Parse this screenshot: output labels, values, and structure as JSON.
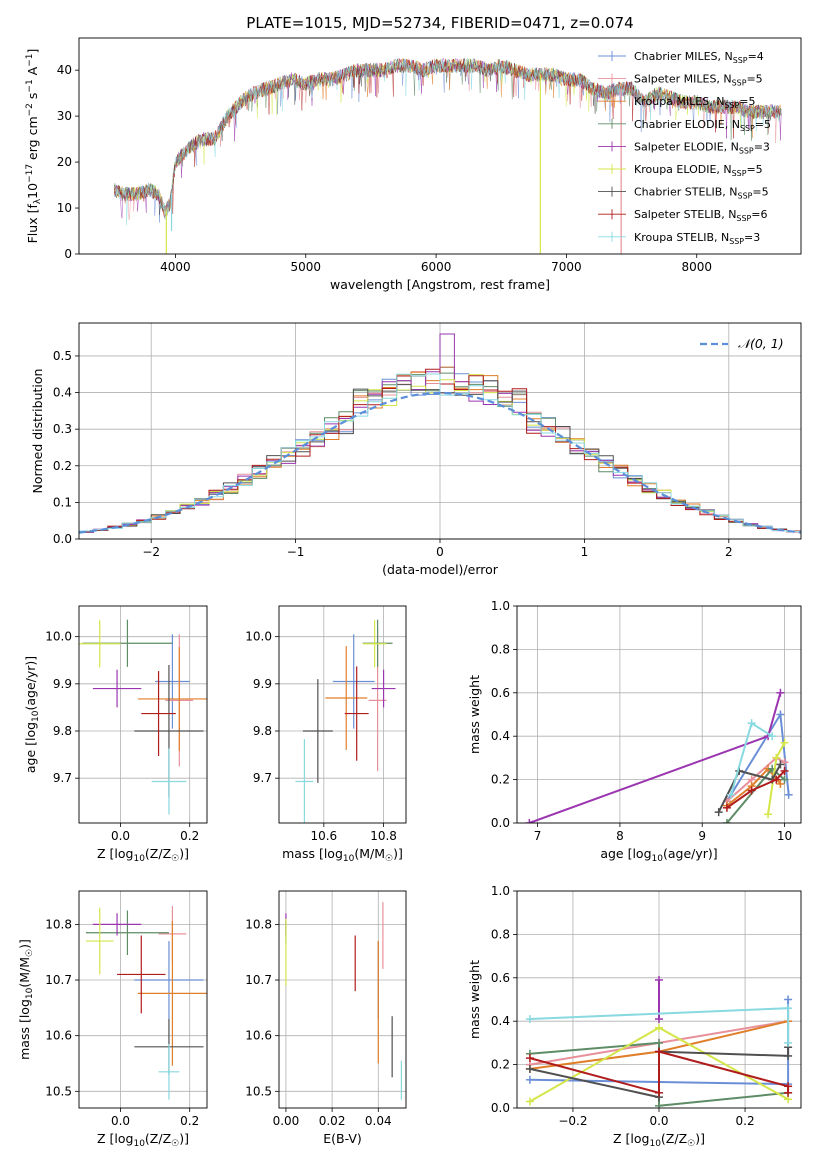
{
  "figure": {
    "title": "PLATE=1015, MJD=52734, FIBERID=0471, z=0.074"
  },
  "colors": {
    "Chabrier MILES": "#6b8fd6",
    "Salpeter MILES": "#e8909a",
    "Kroupa MILES": "#e07f2a",
    "Chabrier ELODIE": "#5e8c66",
    "Salpeter ELODIE": "#9b36b0",
    "Kroupa ELODIE": "#d4e64a",
    "Chabrier STELIB": "#505050",
    "Salpeter STELIB": "#b01c1c",
    "Kroupa STELIB": "#88d9e0"
  },
  "chart_data": [
    {
      "id": "spectrum",
      "type": "line",
      "title": "PLATE=1015, MJD=52734, FIBERID=0471, z=0.074",
      "xlabel": "wavelength [Angstrom, rest frame]",
      "ylabel": "Flux [f_λ10^-17 erg cm^-2 s^-1 A^-1]",
      "xlim": [
        3260,
        8800
      ],
      "ylim": [
        0,
        47
      ],
      "xticks": [
        4000,
        5000,
        6000,
        7000,
        8000
      ],
      "yticks": [
        0,
        10,
        20,
        30,
        40
      ],
      "grid": false,
      "legend_position": "top-right",
      "legend": [
        "Chabrier MILES, N_SSP=4",
        "Salpeter MILES, N_SSP=5",
        "Kroupa MILES, N_SSP=5",
        "Chabrier ELODIE, N_SSP=5",
        "Salpeter ELODIE, N_SSP=3",
        "Kroupa ELODIE, N_SSP=5",
        "Chabrier STELIB, N_SSP=5",
        "Salpeter STELIB, N_SSP=6",
        "Kroupa STELIB, N_SSP=3"
      ],
      "continuum": [
        [
          3530,
          14
        ],
        [
          3600,
          13
        ],
        [
          3700,
          13
        ],
        [
          3800,
          14
        ],
        [
          3870,
          13
        ],
        [
          3920,
          9
        ],
        [
          3960,
          11
        ],
        [
          4000,
          20
        ],
        [
          4100,
          23
        ],
        [
          4200,
          25
        ],
        [
          4300,
          25
        ],
        [
          4400,
          30
        ],
        [
          4500,
          33
        ],
        [
          4600,
          35
        ],
        [
          4700,
          36
        ],
        [
          4800,
          37
        ],
        [
          4900,
          38
        ],
        [
          5000,
          37
        ],
        [
          5100,
          38
        ],
        [
          5200,
          38
        ],
        [
          5300,
          39
        ],
        [
          5400,
          40
        ],
        [
          5500,
          40
        ],
        [
          5600,
          40
        ],
        [
          5700,
          41
        ],
        [
          5800,
          41
        ],
        [
          5900,
          40
        ],
        [
          6000,
          41
        ],
        [
          6100,
          41
        ],
        [
          6200,
          41
        ],
        [
          6300,
          41
        ],
        [
          6400,
          40
        ],
        [
          6500,
          41
        ],
        [
          6600,
          40
        ],
        [
          6700,
          39
        ],
        [
          6800,
          39
        ],
        [
          6900,
          39
        ],
        [
          7000,
          38
        ],
        [
          7100,
          38
        ],
        [
          7200,
          36
        ],
        [
          7300,
          35
        ],
        [
          7400,
          36
        ],
        [
          7500,
          36
        ],
        [
          7600,
          33
        ],
        [
          7700,
          35
        ],
        [
          7800,
          34
        ],
        [
          7900,
          33
        ],
        [
          8000,
          33
        ],
        [
          8100,
          32
        ],
        [
          8200,
          32
        ],
        [
          8300,
          32
        ],
        [
          8400,
          31
        ],
        [
          8500,
          31
        ],
        [
          8600,
          31
        ],
        [
          8650,
          31
        ]
      ],
      "spikes": [
        [
          3930,
          0,
          "Kroupa ELODIE"
        ],
        [
          3970,
          5,
          "Kroupa STELIB"
        ],
        [
          6800,
          0,
          "Kroupa ELODIE"
        ],
        [
          7420,
          0,
          "Salpeter MILES"
        ]
      ]
    },
    {
      "id": "residuals",
      "type": "histogram",
      "xlabel": "(data-model)/error",
      "ylabel": "Normed distribution",
      "xlim": [
        -2.5,
        2.5
      ],
      "ylim": [
        0,
        0.59
      ],
      "xticks": [
        -2,
        -1,
        0,
        1,
        2
      ],
      "yticks": [
        0.0,
        0.1,
        0.2,
        0.3,
        0.4,
        0.5
      ],
      "grid": true,
      "legend": [
        "𝒩(0, 1)"
      ],
      "legend_position": "top-right",
      "bin_width": 0.1,
      "reference": "normal(0,1)"
    },
    {
      "id": "age-vs-Z",
      "type": "errorbar",
      "xlabel": "Z [log10(Z/Z☉)]",
      "ylabel": "age [log10(age/yr)]",
      "xlim": [
        -0.12,
        0.25
      ],
      "ylim": [
        9.605,
        10.065
      ],
      "xticks": [
        0.0,
        0.2
      ],
      "yticks": [
        9.7,
        9.8,
        9.9,
        10.0
      ],
      "grid": true,
      "points": [
        {
          "series": "Chabrier MILES",
          "x": 0.15,
          "y": 9.905,
          "xerr": 0.05,
          "yerr": 0.1
        },
        {
          "series": "Salpeter MILES",
          "x": 0.17,
          "y": 9.865,
          "xerr": 0.04,
          "yerr": 0.14
        },
        {
          "series": "Kroupa MILES",
          "x": 0.17,
          "y": 9.868,
          "xerr": 0.12,
          "yerr": 0.11
        },
        {
          "series": "Chabrier ELODIE",
          "x": 0.02,
          "y": 9.986,
          "xerr": 0.13,
          "yerr": 0.05
        },
        {
          "series": "Salpeter ELODIE",
          "x": -0.01,
          "y": 9.89,
          "xerr": 0.07,
          "yerr": 0.04
        },
        {
          "series": "Kroupa ELODIE",
          "x": -0.06,
          "y": 9.985,
          "xerr": 0.06,
          "yerr": 0.05
        },
        {
          "series": "Chabrier STELIB",
          "x": 0.14,
          "y": 9.8,
          "xerr": 0.1,
          "yerr": 0.14
        },
        {
          "series": "Salpeter STELIB",
          "x": 0.11,
          "y": 9.837,
          "xerr": 0.05,
          "yerr": 0.09
        },
        {
          "series": "Kroupa STELIB",
          "x": 0.14,
          "y": 9.693,
          "xerr": 0.05,
          "yerr": 0.07
        }
      ]
    },
    {
      "id": "age-vs-mass",
      "type": "errorbar",
      "xlabel": "mass [log10(M/M☉)]",
      "ylabel": "",
      "xlim": [
        10.45,
        10.875
      ],
      "ylim": [
        9.605,
        10.065
      ],
      "xticks": [
        10.6,
        10.8
      ],
      "yticks": [
        9.7,
        9.8,
        9.9,
        10.0
      ],
      "grid": true,
      "points": [
        {
          "series": "Chabrier MILES",
          "x": 10.7,
          "y": 9.905,
          "xerr": 0.07,
          "yerr": 0.1
        },
        {
          "series": "Salpeter MILES",
          "x": 10.78,
          "y": 9.865,
          "xerr": 0.03,
          "yerr": 0.15
        },
        {
          "series": "Kroupa MILES",
          "x": 10.675,
          "y": 9.87,
          "xerr": 0.07,
          "yerr": 0.11
        },
        {
          "series": "Chabrier ELODIE",
          "x": 10.78,
          "y": 9.986,
          "xerr": 0.05,
          "yerr": 0.05
        },
        {
          "series": "Salpeter ELODIE",
          "x": 10.8,
          "y": 9.89,
          "xerr": 0.04,
          "yerr": 0.04
        },
        {
          "series": "Kroupa ELODIE",
          "x": 10.77,
          "y": 9.985,
          "xerr": 0.04,
          "yerr": 0.05
        },
        {
          "series": "Chabrier STELIB",
          "x": 10.58,
          "y": 9.8,
          "xerr": 0.05,
          "yerr": 0.11
        },
        {
          "series": "Salpeter STELIB",
          "x": 10.71,
          "y": 9.837,
          "xerr": 0.04,
          "yerr": 0.1
        },
        {
          "series": "Kroupa STELIB",
          "x": 10.535,
          "y": 9.693,
          "xerr": 0.03,
          "yerr": 0.09
        }
      ]
    },
    {
      "id": "weight-vs-age",
      "type": "line",
      "xlabel": "age [log10(age/yr)]",
      "ylabel": "mass weight",
      "xlim": [
        6.75,
        10.2
      ],
      "ylim": [
        0,
        1
      ],
      "xticks": [
        7,
        8,
        9,
        10
      ],
      "yticks": [
        0.0,
        0.2,
        0.4,
        0.6,
        0.8,
        1.0
      ],
      "grid": true,
      "series": [
        {
          "name": "Chabrier MILES",
          "x": [
            9.3,
            9.95,
            10.05
          ],
          "y": [
            0.1,
            0.5,
            0.13
          ]
        },
        {
          "name": "Salpeter MILES",
          "x": [
            9.3,
            9.6,
            9.9,
            10.0
          ],
          "y": [
            0.1,
            0.2,
            0.3,
            0.28
          ]
        },
        {
          "name": "Kroupa MILES",
          "x": [
            9.3,
            9.6,
            9.8,
            9.95
          ],
          "y": [
            0.08,
            0.17,
            0.25,
            0.18
          ]
        },
        {
          "name": "Chabrier ELODIE",
          "x": [
            9.3,
            9.85,
            10.0
          ],
          "y": [
            0.0,
            0.25,
            0.2
          ]
        },
        {
          "name": "Salpeter ELODIE",
          "x": [
            6.9,
            9.8,
            9.95
          ],
          "y": [
            0.0,
            0.4,
            0.6
          ]
        },
        {
          "name": "Kroupa ELODIE",
          "x": [
            9.8,
            9.9,
            10.0
          ],
          "y": [
            0.04,
            0.3,
            0.37
          ]
        },
        {
          "name": "Chabrier STELIB",
          "x": [
            9.2,
            9.45,
            9.85,
            9.95
          ],
          "y": [
            0.05,
            0.24,
            0.2,
            0.27
          ]
        },
        {
          "name": "Salpeter STELIB",
          "x": [
            9.3,
            9.6,
            9.9,
            10.0
          ],
          "y": [
            0.07,
            0.15,
            0.2,
            0.24
          ]
        },
        {
          "name": "Kroupa STELIB",
          "x": [
            9.35,
            9.6,
            9.85
          ],
          "y": [
            0.13,
            0.46,
            0.4
          ]
        }
      ]
    },
    {
      "id": "mass-vs-Z",
      "type": "errorbar",
      "xlabel": "Z [log10(Z/Z☉)]",
      "ylabel": "mass [log10(M/M☉)]",
      "xlim": [
        -0.12,
        0.25
      ],
      "ylim": [
        10.47,
        10.86
      ],
      "xticks": [
        0.0,
        0.2
      ],
      "yticks": [
        10.5,
        10.6,
        10.7,
        10.8
      ],
      "grid": true,
      "points": [
        {
          "series": "Chabrier MILES",
          "x": 0.14,
          "y": 10.7,
          "xerr": 0.1,
          "yerr": 0.07
        },
        {
          "series": "Salpeter MILES",
          "x": 0.15,
          "y": 10.783,
          "xerr": 0.04,
          "yerr": 0.05
        },
        {
          "series": "Kroupa MILES",
          "x": 0.15,
          "y": 10.676,
          "xerr": 0.1,
          "yerr": 0.13
        },
        {
          "series": "Chabrier ELODIE",
          "x": 0.02,
          "y": 10.785,
          "xerr": 0.12,
          "yerr": 0.04
        },
        {
          "series": "Salpeter ELODIE",
          "x": -0.01,
          "y": 10.8,
          "xerr": 0.07,
          "yerr": 0.02
        },
        {
          "series": "Kroupa ELODIE",
          "x": -0.06,
          "y": 10.77,
          "xerr": 0.04,
          "yerr": 0.06
        },
        {
          "series": "Chabrier STELIB",
          "x": 0.14,
          "y": 10.58,
          "xerr": 0.1,
          "yerr": 0.05
        },
        {
          "series": "Salpeter STELIB",
          "x": 0.06,
          "y": 10.71,
          "xerr": 0.07,
          "yerr": 0.07
        },
        {
          "series": "Kroupa STELIB",
          "x": 0.14,
          "y": 10.535,
          "xerr": 0.03,
          "yerr": 0.05
        }
      ]
    },
    {
      "id": "mass-vs-EBV",
      "type": "errorbar",
      "xlabel": "E(B-V)",
      "ylabel": "",
      "xlim": [
        -0.003,
        0.052
      ],
      "ylim": [
        10.47,
        10.86
      ],
      "xticks": [
        0.0,
        0.02,
        0.04
      ],
      "yticks": [
        10.5,
        10.6,
        10.7,
        10.8
      ],
      "grid": true,
      "points": [
        {
          "series": "Chabrier MILES",
          "x": 0.04,
          "y": 10.7,
          "xerr": 0,
          "yerr": 0.07
        },
        {
          "series": "Salpeter MILES",
          "x": 0.042,
          "y": 10.78,
          "xerr": 0,
          "yerr": 0.06
        },
        {
          "series": "Kroupa MILES",
          "x": 0.04,
          "y": 10.66,
          "xerr": 0,
          "yerr": 0.11
        },
        {
          "series": "Chabrier ELODIE",
          "x": 0.0,
          "y": 10.785,
          "xerr": 0,
          "yerr": 0.02
        },
        {
          "series": "Salpeter ELODIE",
          "x": 0.0,
          "y": 10.8,
          "xerr": 0,
          "yerr": 0.02
        },
        {
          "series": "Kroupa ELODIE",
          "x": 0.0,
          "y": 10.75,
          "xerr": 0,
          "yerr": 0.06
        },
        {
          "series": "Chabrier STELIB",
          "x": 0.046,
          "y": 10.58,
          "xerr": 0,
          "yerr": 0.055
        },
        {
          "series": "Salpeter STELIB",
          "x": 0.03,
          "y": 10.73,
          "xerr": 0,
          "yerr": 0.05
        },
        {
          "series": "Kroupa STELIB",
          "x": 0.05,
          "y": 10.52,
          "xerr": 0,
          "yerr": 0.035
        }
      ]
    },
    {
      "id": "weight-vs-Z",
      "type": "line",
      "xlabel": "Z [log10(Z/Z☉)]",
      "ylabel": "mass weight",
      "xlim": [
        -0.33,
        0.33
      ],
      "ylim": [
        0,
        1
      ],
      "xticks": [
        -0.2,
        0.0,
        0.2
      ],
      "yticks": [
        0.0,
        0.2,
        0.4,
        0.6,
        0.8,
        1.0
      ],
      "grid": true,
      "series": [
        {
          "name": "Chabrier MILES",
          "x": [
            -0.3,
            0.0,
            0.3,
            0.3
          ],
          "y": [
            0.13,
            0.12,
            0.11,
            0.5
          ]
        },
        {
          "name": "Salpeter MILES",
          "x": [
            -0.3,
            0.0,
            0.3
          ],
          "y": [
            0.2,
            0.3,
            0.4
          ]
        },
        {
          "name": "Kroupa MILES",
          "x": [
            -0.3,
            0.0,
            0.3
          ],
          "y": [
            0.18,
            0.26,
            0.4
          ]
        },
        {
          "name": "Chabrier ELODIE",
          "x": [
            -0.3,
            0.0,
            0.0,
            0.3
          ],
          "y": [
            0.25,
            0.3,
            0.01,
            0.07
          ]
        },
        {
          "name": "Salpeter ELODIE",
          "x": [
            0.0,
            0.0
          ],
          "y": [
            0.41,
            0.59
          ]
        },
        {
          "name": "Kroupa ELODIE",
          "x": [
            -0.3,
            0.0,
            0.3
          ],
          "y": [
            0.03,
            0.37,
            0.04
          ]
        },
        {
          "name": "Chabrier STELIB",
          "x": [
            -0.3,
            0.0,
            0.0,
            0.3,
            0.3
          ],
          "y": [
            0.18,
            0.05,
            0.26,
            0.24,
            0.28
          ]
        },
        {
          "name": "Salpeter STELIB",
          "x": [
            -0.3,
            0.0,
            0.0,
            0.3,
            0.3
          ],
          "y": [
            0.23,
            0.07,
            0.26,
            0.1,
            0.07
          ]
        },
        {
          "name": "Kroupa STELIB",
          "x": [
            -0.3,
            0.3,
            0.3
          ],
          "y": [
            0.41,
            0.46,
            0.3
          ]
        }
      ]
    }
  ]
}
